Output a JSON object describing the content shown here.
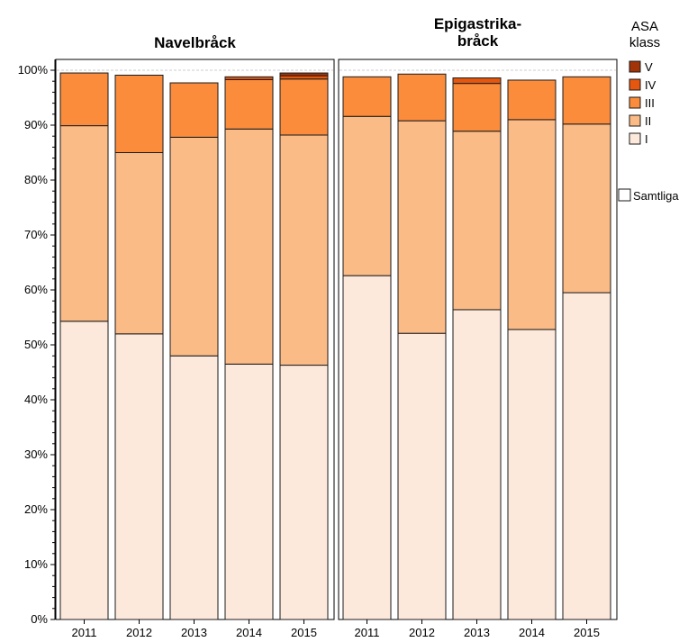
{
  "chart_data": {
    "type": "bar",
    "stacked": true,
    "ylim": [
      0,
      100
    ],
    "yticks": [
      "0%",
      "10%",
      "20%",
      "30%",
      "40%",
      "50%",
      "60%",
      "70%",
      "80%",
      "90%",
      "100%"
    ],
    "categories": [
      "2011",
      "2012",
      "2013",
      "2014",
      "2015"
    ],
    "legend": {
      "title": "ASA klass",
      "entries": [
        "V",
        "IV",
        "III",
        "II",
        "I"
      ],
      "placement": "top-right",
      "extra_entry": "Samtliga"
    },
    "colors": {
      "I": "#fde9dc",
      "II": "#fbbb86",
      "III": "#fb8c3c",
      "IV": "#e5560e",
      "V": "#a33407",
      "samtliga": "#ffffff"
    },
    "panels": [
      {
        "title": "Navelbråck",
        "series": [
          {
            "name": "I",
            "values": [
              54.3,
              52.0,
              48.0,
              46.5,
              46.3
            ]
          },
          {
            "name": "II",
            "values": [
              35.6,
              33.0,
              39.8,
              42.8,
              41.9
            ]
          },
          {
            "name": "III",
            "values": [
              9.6,
              14.1,
              9.9,
              9.0,
              10.2
            ]
          },
          {
            "name": "IV",
            "values": [
              0,
              0,
              0,
              0.5,
              0.6
            ]
          },
          {
            "name": "V",
            "values": [
              0,
              0,
              0,
              0,
              0.5
            ]
          }
        ]
      },
      {
        "title": "Epigastrika-\nbråck",
        "series": [
          {
            "name": "I",
            "values": [
              62.6,
              52.1,
              56.4,
              52.8,
              59.5
            ]
          },
          {
            "name": "II",
            "values": [
              29.0,
              38.7,
              32.5,
              38.2,
              30.7
            ]
          },
          {
            "name": "III",
            "values": [
              7.2,
              8.5,
              8.7,
              7.2,
              8.6
            ]
          },
          {
            "name": "IV",
            "values": [
              0,
              0,
              1.0,
              0,
              0
            ]
          },
          {
            "name": "V",
            "values": [
              0,
              0,
              0,
              0,
              0
            ]
          }
        ]
      }
    ]
  }
}
